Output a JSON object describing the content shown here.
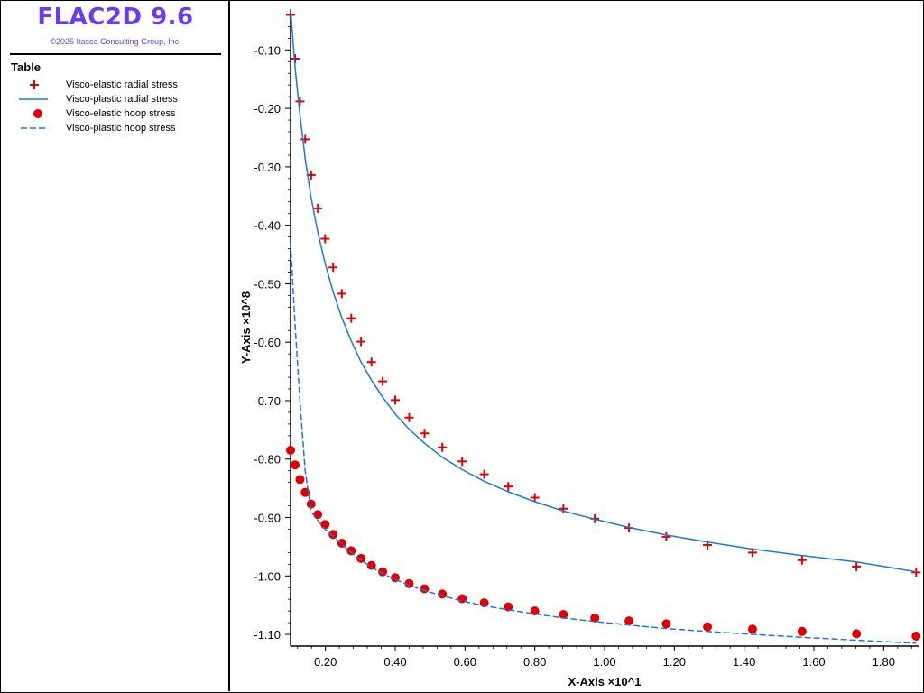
{
  "app": {
    "title": "FLAC2D 9.6",
    "copyright": "©2025 Itasca Consulting Group, Inc."
  },
  "legend": {
    "title": "Table",
    "items": [
      {
        "label": "Visco-elastic radial stress",
        "symbol": "plus",
        "color": "#e00000"
      },
      {
        "label": "Visco-plastic radial stress",
        "symbol": "solid-line",
        "color": "#1a78d8"
      },
      {
        "label": "Visco-elastic hoop stress",
        "symbol": "dot",
        "color": "#e00000"
      },
      {
        "label": "Visco-plastic hoop stress",
        "symbol": "dashed-line",
        "color": "#1a78d8"
      }
    ]
  },
  "colors": {
    "marker": "#e00000",
    "line": "#1a78d8",
    "title": "#6a3cf0"
  },
  "chart_data": {
    "type": "scatter",
    "xlabel": "X-Axis ×10^1",
    "ylabel": "Y-Axis ×10^8",
    "xlim": [
      0.1,
      1.9
    ],
    "ylim": [
      -1.12,
      -0.03
    ],
    "xticks": [
      "0.20",
      "0.40",
      "0.60",
      "0.80",
      "1.00",
      "1.20",
      "1.40",
      "1.60",
      "1.80"
    ],
    "yticks": [
      "-0.10",
      "-0.20",
      "-0.30",
      "-0.40",
      "-0.50",
      "-0.60",
      "-0.70",
      "-0.80",
      "-0.90",
      "-1.00",
      "-1.10"
    ],
    "grid": false,
    "legend_position": "left-panel",
    "series": [
      {
        "name": "Visco-elastic radial stress",
        "style": "plus",
        "x": [
          0.1,
          0.113,
          0.127,
          0.142,
          0.159,
          0.178,
          0.199,
          0.222,
          0.247,
          0.274,
          0.302,
          0.332,
          0.364,
          0.4,
          0.44,
          0.484,
          0.535,
          0.592,
          0.655,
          0.724,
          0.8,
          0.882,
          0.972,
          1.07,
          1.177,
          1.295,
          1.424,
          1.566,
          1.722,
          1.893
        ],
        "y": [
          -0.04,
          -0.115,
          -0.188,
          -0.253,
          -0.314,
          -0.371,
          -0.423,
          -0.472,
          -0.517,
          -0.559,
          -0.599,
          -0.634,
          -0.667,
          -0.699,
          -0.729,
          -0.756,
          -0.78,
          -0.804,
          -0.826,
          -0.847,
          -0.866,
          -0.885,
          -0.902,
          -0.918,
          -0.933,
          -0.947,
          -0.96,
          -0.973,
          -0.984,
          -0.994
        ]
      },
      {
        "name": "Visco-plastic radial stress",
        "style": "solid",
        "x": [
          0.1,
          0.113,
          0.127,
          0.142,
          0.159,
          0.178,
          0.199,
          0.222,
          0.247,
          0.274,
          0.302,
          0.332,
          0.364,
          0.4,
          0.44,
          0.484,
          0.535,
          0.592,
          0.655,
          0.724,
          0.8,
          0.882,
          0.972,
          1.07,
          1.177,
          1.295,
          1.424,
          1.566,
          1.722,
          1.893
        ],
        "y": [
          -0.03,
          -0.13,
          -0.211,
          -0.286,
          -0.353,
          -0.412,
          -0.465,
          -0.514,
          -0.558,
          -0.598,
          -0.634,
          -0.665,
          -0.694,
          -0.723,
          -0.749,
          -0.773,
          -0.797,
          -0.818,
          -0.838,
          -0.856,
          -0.873,
          -0.889,
          -0.903,
          -0.917,
          -0.93,
          -0.942,
          -0.954,
          -0.965,
          -0.976,
          -0.993
        ]
      },
      {
        "name": "Visco-elastic hoop stress",
        "style": "dot",
        "x": [
          0.1,
          0.113,
          0.127,
          0.142,
          0.159,
          0.178,
          0.199,
          0.222,
          0.247,
          0.274,
          0.302,
          0.332,
          0.364,
          0.4,
          0.44,
          0.484,
          0.535,
          0.592,
          0.655,
          0.724,
          0.8,
          0.882,
          0.972,
          1.07,
          1.177,
          1.295,
          1.424,
          1.566,
          1.722,
          1.893
        ],
        "y": [
          -0.785,
          -0.81,
          -0.835,
          -0.857,
          -0.877,
          -0.895,
          -0.912,
          -0.929,
          -0.944,
          -0.957,
          -0.97,
          -0.982,
          -0.993,
          -1.003,
          -1.013,
          -1.022,
          -1.031,
          -1.039,
          -1.046,
          -1.053,
          -1.06,
          -1.066,
          -1.072,
          -1.077,
          -1.082,
          -1.087,
          -1.091,
          -1.095,
          -1.099,
          -1.103
        ]
      },
      {
        "name": "Visco-plastic hoop stress",
        "style": "dashed",
        "x": [
          0.1,
          0.113,
          0.127,
          0.142,
          0.159,
          0.178,
          0.199,
          0.222,
          0.247,
          0.274,
          0.302,
          0.332,
          0.364,
          0.4,
          0.44,
          0.484,
          0.535,
          0.592,
          0.655,
          0.724,
          0.8,
          0.882,
          0.972,
          1.07,
          1.177,
          1.295,
          1.424,
          1.566,
          1.722,
          1.893
        ],
        "y": [
          -0.43,
          -0.57,
          -0.7,
          -0.82,
          -0.89,
          -0.905,
          -0.92,
          -0.932,
          -0.946,
          -0.96,
          -0.973,
          -0.985,
          -0.996,
          -1.006,
          -1.016,
          -1.025,
          -1.034,
          -1.043,
          -1.051,
          -1.058,
          -1.065,
          -1.072,
          -1.078,
          -1.084,
          -1.09,
          -1.095,
          -1.1,
          -1.105,
          -1.11,
          -1.115
        ]
      }
    ]
  }
}
